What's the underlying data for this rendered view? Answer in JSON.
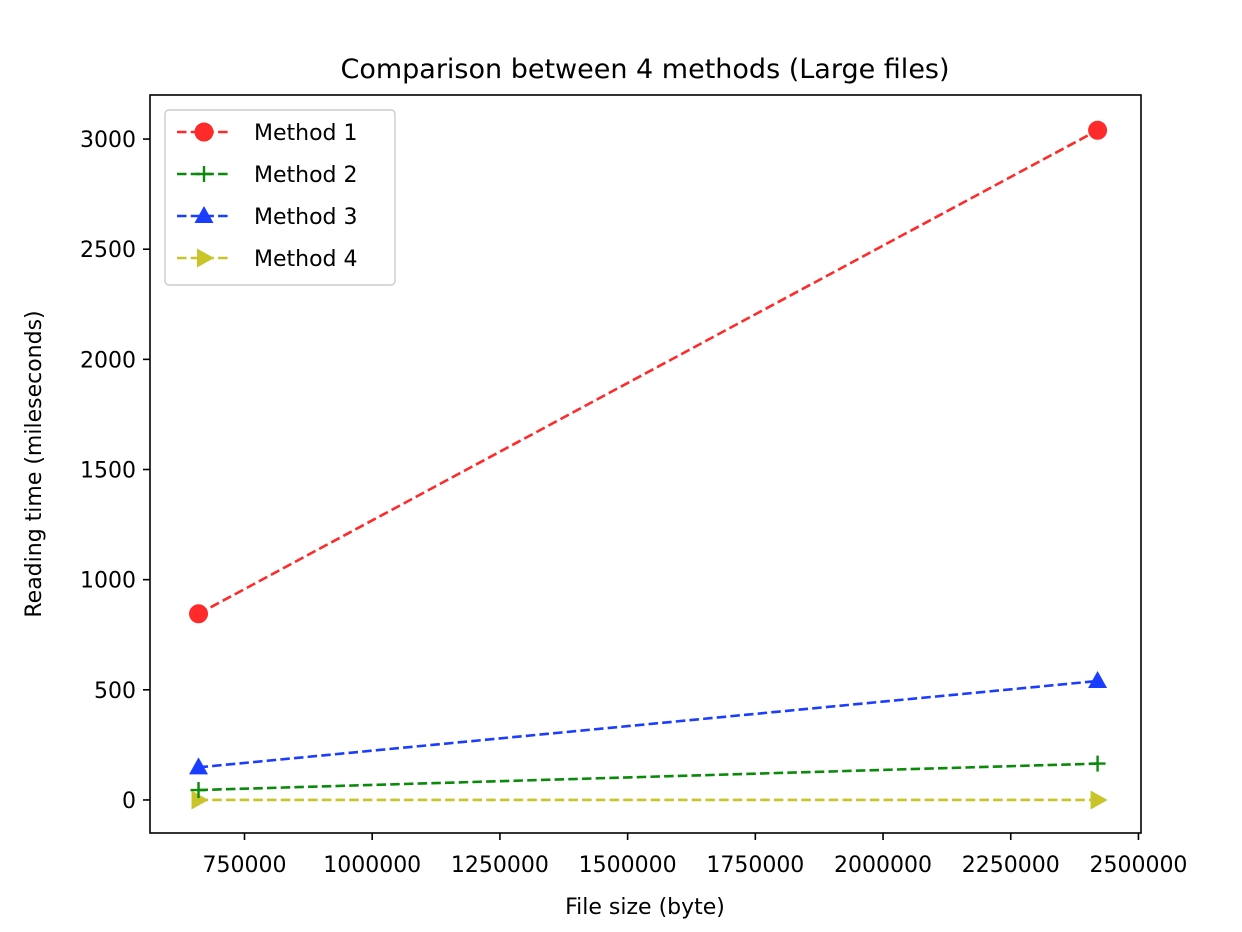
{
  "chart_data": {
    "type": "line",
    "title": "Comparison between 4 methods (Large files)",
    "xlabel": "File size (byte)",
    "ylabel": "Reading time (mileseconds)",
    "xlim": [
      565000,
      2505000
    ],
    "ylim": [
      -150,
      3200
    ],
    "xticks": [
      750000,
      1000000,
      1250000,
      1500000,
      1750000,
      2000000,
      2250000,
      2500000
    ],
    "yticks": [
      0,
      500,
      1000,
      1500,
      2000,
      2500,
      3000
    ],
    "x": [
      660000,
      2420000
    ],
    "legend_position": "upper-left",
    "grid": false,
    "series": [
      {
        "name": "Method 1",
        "values": [
          845,
          3040
        ],
        "color": "#ff2a2a",
        "marker": "circle",
        "line_style": "dashed"
      },
      {
        "name": "Method 2",
        "values": [
          45,
          165
        ],
        "color": "#0a8a0a",
        "marker": "plus",
        "line_style": "dashed"
      },
      {
        "name": "Method 3",
        "values": [
          148,
          540
        ],
        "color": "#1a3dff",
        "marker": "triangle-up",
        "line_style": "dashed"
      },
      {
        "name": "Method 4",
        "values": [
          0,
          0
        ],
        "color": "#c8c42a",
        "marker": "triangle-right",
        "line_style": "dashed"
      }
    ]
  }
}
